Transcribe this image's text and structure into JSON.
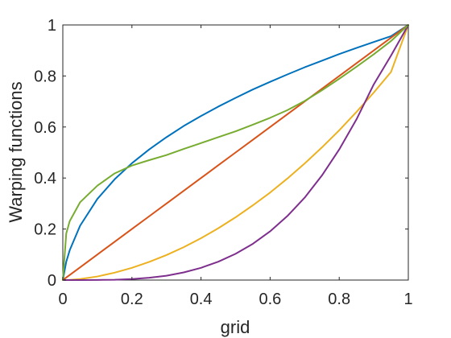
{
  "chart_data": {
    "type": "line",
    "title": "",
    "xlabel": "grid",
    "ylabel": "Warping functions",
    "xlim": [
      0,
      1
    ],
    "ylim": [
      0,
      1
    ],
    "grid": false,
    "legend": "none",
    "x_ticks": [
      "0",
      "0.2",
      "0.4",
      "0.6",
      "0.8",
      "1"
    ],
    "y_ticks": [
      "0",
      "0.2",
      "0.4",
      "0.6",
      "0.8",
      "1"
    ],
    "x": [
      0,
      0.01,
      0.02,
      0.05,
      0.1,
      0.15,
      0.2,
      0.25,
      0.3,
      0.35,
      0.4,
      0.45,
      0.5,
      0.55,
      0.6,
      0.65,
      0.7,
      0.75,
      0.8,
      0.85,
      0.9,
      0.95,
      1
    ],
    "series": [
      {
        "color": "#0072BD",
        "values": [
          0,
          0.072,
          0.117,
          0.213,
          0.318,
          0.395,
          0.458,
          0.512,
          0.56,
          0.604,
          0.643,
          0.68,
          0.714,
          0.747,
          0.777,
          0.806,
          0.834,
          0.86,
          0.886,
          0.91,
          0.933,
          0.956,
          1.0
        ]
      },
      {
        "color": "#D95319",
        "values": [
          0,
          0.01,
          0.02,
          0.05,
          0.1,
          0.15,
          0.2,
          0.25,
          0.3,
          0.35,
          0.4,
          0.45,
          0.5,
          0.55,
          0.6,
          0.65,
          0.7,
          0.75,
          0.8,
          0.85,
          0.9,
          0.95,
          1.0
        ]
      },
      {
        "color": "#EDB120",
        "values": [
          0,
          0.0002,
          0.0008,
          0.004,
          0.014,
          0.029,
          0.048,
          0.071,
          0.098,
          0.129,
          0.164,
          0.203,
          0.246,
          0.293,
          0.343,
          0.398,
          0.457,
          0.52,
          0.587,
          0.659,
          0.735,
          0.816,
          1.0
        ]
      },
      {
        "color": "#7E2F8E",
        "values": [
          0,
          0,
          0,
          0,
          0.0003,
          0.0013,
          0.004,
          0.009,
          0.017,
          0.03,
          0.048,
          0.072,
          0.103,
          0.142,
          0.191,
          0.251,
          0.323,
          0.41,
          0.512,
          0.63,
          0.767,
          0.88,
          1.0
        ]
      },
      {
        "color": "#77AC30",
        "values": [
          0,
          0.183,
          0.231,
          0.305,
          0.37,
          0.418,
          0.449,
          0.47,
          0.49,
          0.514,
          0.537,
          0.56,
          0.583,
          0.609,
          0.636,
          0.666,
          0.702,
          0.744,
          0.789,
          0.836,
          0.885,
          0.937,
          1.0
        ]
      }
    ]
  }
}
